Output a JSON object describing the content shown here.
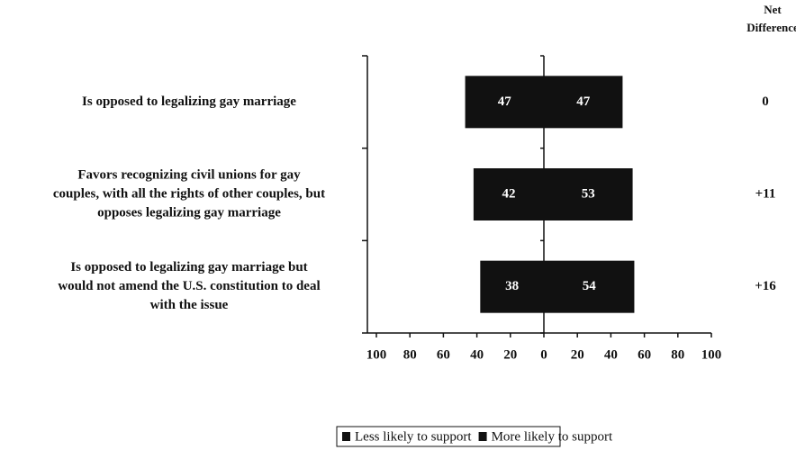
{
  "chart_data": {
    "type": "diverging-bar",
    "categories": [
      [
        "Is opposed to legalizing gay marriage"
      ],
      [
        "Favors recognizing civil unions for gay",
        "couples, with all the rights of other couples, but",
        "opposes legalizing gay marriage"
      ],
      [
        "Is opposed to legalizing gay marriage but",
        "would not amend the U.S. constitution to deal",
        "with the issue"
      ]
    ],
    "series": [
      {
        "name": "Less likely to support",
        "color": "#111111",
        "direction": "left",
        "values": [
          47,
          42,
          38
        ]
      },
      {
        "name": "More likely to support",
        "color": "#111111",
        "direction": "right",
        "values": [
          47,
          53,
          54
        ]
      }
    ],
    "net_difference": {
      "title": [
        "Net",
        "Difference"
      ],
      "values": [
        0,
        11,
        16
      ],
      "value_labels": [
        "0",
        "+11",
        "+16"
      ]
    },
    "xlim": [
      -100,
      100
    ],
    "xticks": [
      {
        "value": -100,
        "label": "100"
      },
      {
        "value": -80,
        "label": "80"
      },
      {
        "value": -60,
        "label": "60"
      },
      {
        "value": -40,
        "label": "40"
      },
      {
        "value": -20,
        "label": "20"
      },
      0,
      20,
      40,
      60,
      80,
      100
    ],
    "legend": "bottom"
  }
}
